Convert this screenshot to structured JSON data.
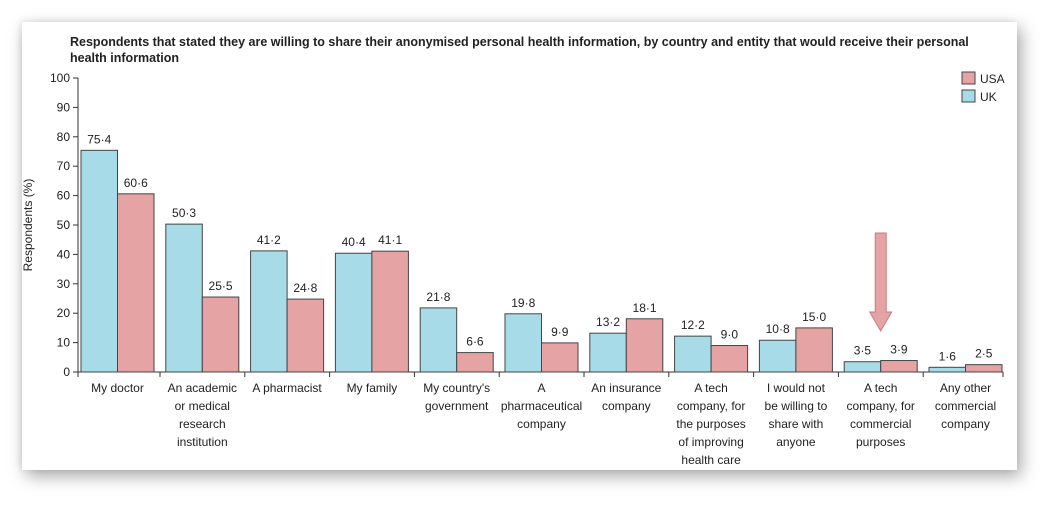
{
  "chart_data": {
    "type": "bar",
    "title_lines": [
      "Respondents that stated they are willing to share their anonymised personal health information, by country and entity that would receive their personal",
      "health information"
    ],
    "ylabel": "Respondents (%)",
    "xlabel": "",
    "ylim": [
      0,
      100
    ],
    "yticks": [
      0,
      10,
      20,
      30,
      40,
      50,
      60,
      70,
      80,
      90,
      100
    ],
    "legend_position": "top-right",
    "legend_order": [
      "USA",
      "UK"
    ],
    "categories": [
      [
        "My doctor"
      ],
      [
        "An academic",
        "or medical",
        "research",
        "institution"
      ],
      [
        "A pharmacist"
      ],
      [
        "My family"
      ],
      [
        "My country's",
        "government"
      ],
      [
        "A",
        "pharmaceutical",
        "company"
      ],
      [
        "An insurance",
        "company"
      ],
      [
        "A tech",
        "company, for",
        "the purposes",
        "of improving",
        "health care"
      ],
      [
        "I would not",
        "be willing to",
        "share with",
        "anyone"
      ],
      [
        "A tech",
        "company, for",
        "commercial",
        "purposes"
      ],
      [
        "Any other",
        "commercial",
        "company"
      ]
    ],
    "series": [
      {
        "name": "UK",
        "color": "#a8dbe8",
        "values": [
          75.4,
          50.3,
          41.2,
          40.4,
          21.8,
          19.8,
          13.2,
          12.2,
          10.8,
          3.5,
          1.6
        ],
        "labels": [
          "75·4",
          "50·3",
          "41·2",
          "40·4",
          "21·8",
          "19·8",
          "13·2",
          "12·2",
          "10·8",
          "3·5",
          "1·6"
        ]
      },
      {
        "name": "USA",
        "color": "#e5a3a3",
        "values": [
          60.6,
          25.5,
          24.8,
          41.1,
          6.6,
          9.9,
          18.1,
          9.0,
          15.0,
          3.9,
          2.5
        ],
        "labels": [
          "60·6",
          "25·5",
          "24·8",
          "41·1",
          "6·6",
          "9·9",
          "18·1",
          "9·0",
          "15·0",
          "3·9",
          "2·5"
        ]
      }
    ],
    "annotation": {
      "type": "down-arrow",
      "category_index": 9,
      "color": "#e5a3a3"
    },
    "grid": false
  }
}
